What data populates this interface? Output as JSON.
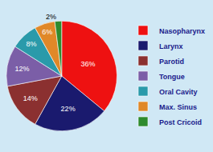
{
  "chart_data": {
    "type": "pie",
    "categories": [
      "Nasopharynx",
      "Larynx",
      "Parotid",
      "Tongue",
      "Oral Cavity",
      "Max. Sinus",
      "Post Cricoid"
    ],
    "values": [
      36,
      22,
      14,
      12,
      8,
      6,
      2
    ],
    "value_labels": [
      "36%",
      "22%",
      "14%",
      "12%",
      "8%",
      "6%",
      "2%"
    ],
    "colors": [
      "#ee1111",
      "#1a1a6e",
      "#8b3030",
      "#7b5ea7",
      "#2a9aaa",
      "#e08828",
      "#2e8b2e"
    ],
    "data_labels": true,
    "legend": "right"
  }
}
